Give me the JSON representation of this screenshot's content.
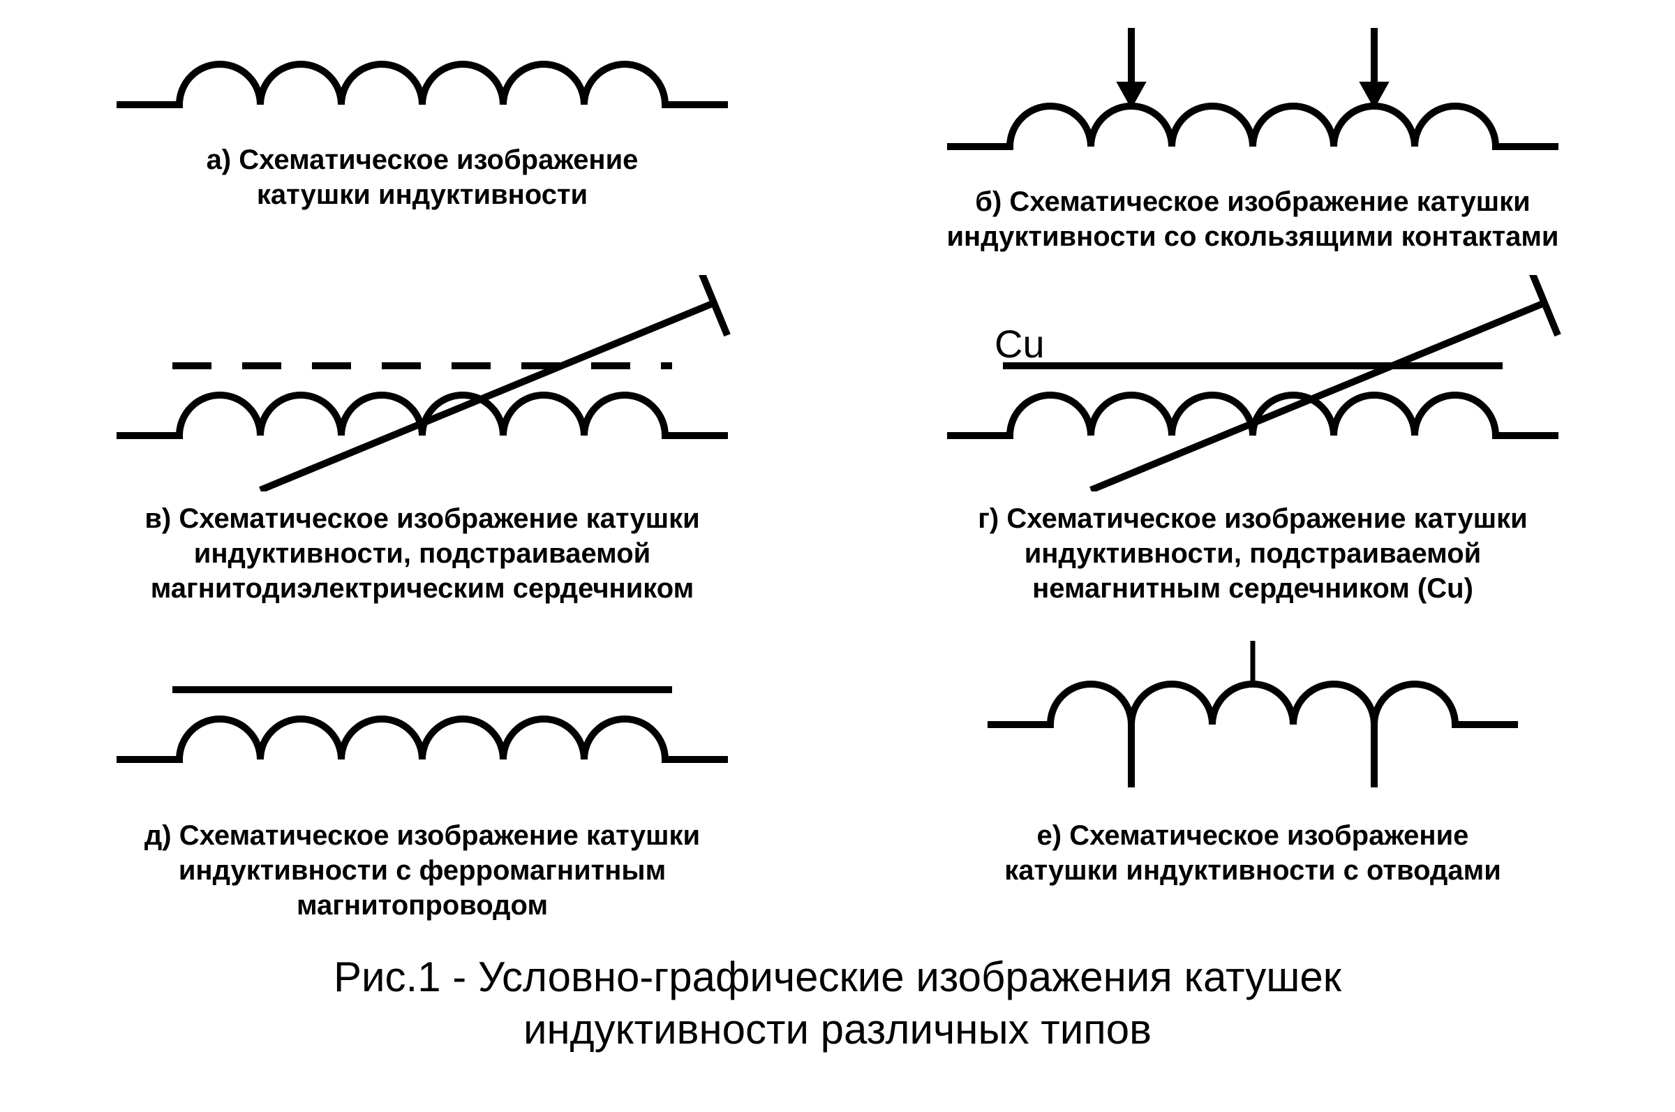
{
  "stroke_color": "#000000",
  "stroke_width": 10,
  "background": "#ffffff",
  "caption_fontsize": 40,
  "caption_fontweight": 700,
  "figcaption_fontsize": 60,
  "cells": {
    "a": {
      "label": "а) Схематическое изображение\nкатушки индуктивности"
    },
    "b": {
      "label": "б) Схематическое изображение катушки\nиндуктивности со скользящими контактами"
    },
    "v": {
      "label": "в) Схематическое изображение катушки\nиндуктивности, подстраиваемой\nмагнитодиэлектрическим сердечником"
    },
    "g": {
      "label": "г) Схематическое изображение катушки\nиндуктивности, подстраиваемой\nнемагнитным сердечником (Cu)",
      "core_label": "Cu"
    },
    "d": {
      "label": "д) Схематическое изображение катушки\nиндуктивности с ферромагнитным\nмагнитопроводом"
    },
    "e": {
      "label": "е) Схематическое изображение\nкатушки индуктивности с отводами"
    }
  },
  "figure_caption": "Рис.1 - Условно-графические изображения катушек\nиндуктивности различных типов",
  "coil": {
    "humps": 6,
    "radius": 58,
    "lead": 90
  },
  "dash": {
    "on": 56,
    "off": 44
  }
}
